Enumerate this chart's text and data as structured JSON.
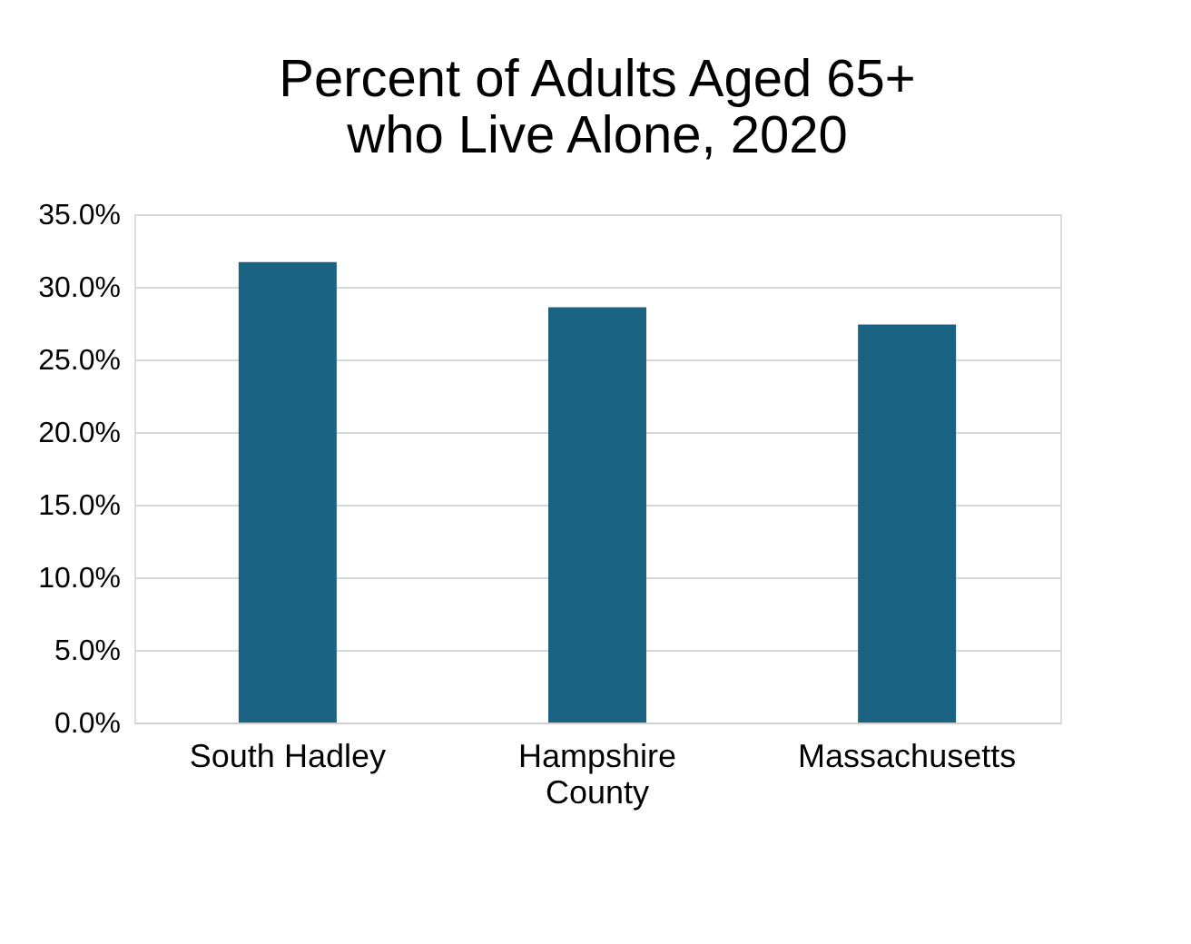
{
  "chart_data": {
    "type": "bar",
    "title": [
      "Percent of Adults Aged 65+",
      "who Live Alone, 2020"
    ],
    "categories": [
      "South Hadley",
      "Hampshire County",
      "Massachusetts"
    ],
    "values": [
      31.7,
      28.6,
      27.4
    ],
    "color": "#1a6282",
    "ylim": [
      0,
      35
    ],
    "yticks": [
      {
        "value": 0,
        "label": "0.0%"
      },
      {
        "value": 5,
        "label": "5.0%"
      },
      {
        "value": 10,
        "label": "10.0%"
      },
      {
        "value": 15,
        "label": "15.0%"
      },
      {
        "value": 20,
        "label": "20.0%"
      },
      {
        "value": 25,
        "label": "25.0%"
      },
      {
        "value": 30,
        "label": "30.0%"
      },
      {
        "value": 35,
        "label": "35.0%"
      }
    ],
    "grid": "y"
  }
}
